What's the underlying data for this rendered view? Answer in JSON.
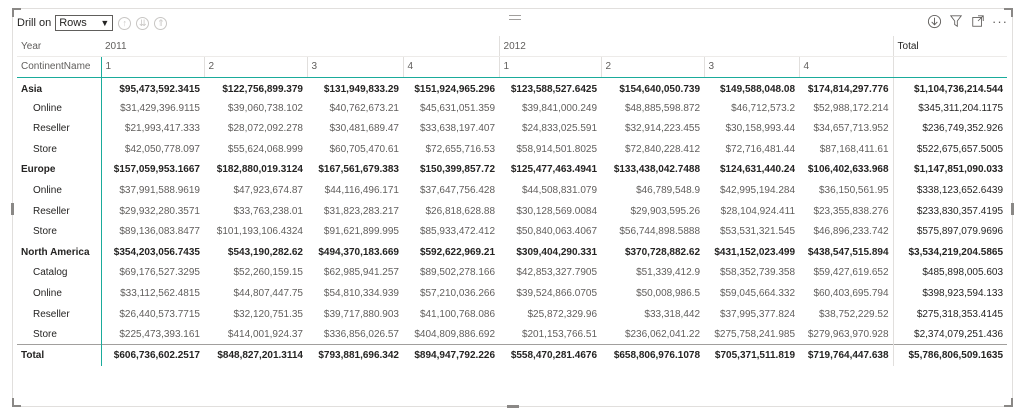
{
  "drill": {
    "label": "Drill on",
    "selected": "Rows"
  },
  "icons": {
    "drill_up": "up-arrow-circle-icon",
    "drill_down": "down-arrow-circle-icon",
    "expand_all": "double-up-arrow-circle-icon",
    "drill_mode": "down-arrow-circle-icon",
    "filter": "filter-icon",
    "focus": "focus-mode-icon",
    "more": "more-options-icon"
  },
  "header": {
    "row1_label": "Year",
    "row2_label": "ContinentName",
    "years": [
      "2011",
      "2012"
    ],
    "quarters": [
      "1",
      "2",
      "3",
      "4",
      "1",
      "2",
      "3",
      "4"
    ],
    "total_label": "Total"
  },
  "rows": [
    {
      "label": "Asia",
      "level": "region",
      "values": [
        "$95,473,592.3415",
        "$122,756,899.379",
        "$131,949,833.29",
        "$151,924,965.296",
        "$123,588,527.6425",
        "$154,640,050.739",
        "$149,588,048.08",
        "$174,814,297.776"
      ],
      "total": "$1,104,736,214.544"
    },
    {
      "label": "Online",
      "level": "child",
      "values": [
        "$31,429,396.9115",
        "$39,060,738.102",
        "$40,762,673.21",
        "$45,631,051.359",
        "$39,841,000.249",
        "$48,885,598.872",
        "$46,712,573.2",
        "$52,988,172.214"
      ],
      "total": "$345,311,204.1175"
    },
    {
      "label": "Reseller",
      "level": "child",
      "values": [
        "$21,993,417.333",
        "$28,072,092.278",
        "$30,481,689.47",
        "$33,638,197.407",
        "$24,833,025.591",
        "$32,914,223.455",
        "$30,158,993.44",
        "$34,657,713.952"
      ],
      "total": "$236,749,352.926"
    },
    {
      "label": "Store",
      "level": "child",
      "values": [
        "$42,050,778.097",
        "$55,624,068.999",
        "$60,705,470.61",
        "$72,655,716.53",
        "$58,914,501.8025",
        "$72,840,228.412",
        "$72,716,481.44",
        "$87,168,411.61"
      ],
      "total": "$522,675,657.5005"
    },
    {
      "label": "Europe",
      "level": "region",
      "values": [
        "$157,059,953.1667",
        "$182,880,019.3124",
        "$167,561,679.383",
        "$150,399,857.72",
        "$125,477,463.4941",
        "$133,438,042.7488",
        "$124,631,440.24",
        "$106,402,633.968"
      ],
      "total": "$1,147,851,090.033"
    },
    {
      "label": "Online",
      "level": "child",
      "values": [
        "$37,991,588.9619",
        "$47,923,674.87",
        "$44,116,496.171",
        "$37,647,756.428",
        "$44,508,831.079",
        "$46,789,548.9",
        "$42,995,194.284",
        "$36,150,561.95"
      ],
      "total": "$338,123,652.6439"
    },
    {
      "label": "Reseller",
      "level": "child",
      "values": [
        "$29,932,280.3571",
        "$33,763,238.01",
        "$31,823,283.217",
        "$26,818,628.88",
        "$30,128,569.0084",
        "$29,903,595.26",
        "$28,104,924.411",
        "$23,355,838.276"
      ],
      "total": "$233,830,357.4195"
    },
    {
      "label": "Store",
      "level": "child",
      "values": [
        "$89,136,083.8477",
        "$101,193,106.4324",
        "$91,621,899.995",
        "$85,933,472.412",
        "$50,840,063.4067",
        "$56,744,898.5888",
        "$53,531,321.545",
        "$46,896,233.742"
      ],
      "total": "$575,897,079.9696"
    },
    {
      "label": "North America",
      "level": "region",
      "values": [
        "$354,203,056.7435",
        "$543,190,282.62",
        "$494,370,183.669",
        "$592,622,969.21",
        "$309,404,290.331",
        "$370,728,882.62",
        "$431,152,023.499",
        "$438,547,515.894"
      ],
      "total": "$3,534,219,204.5865"
    },
    {
      "label": "Catalog",
      "level": "child",
      "values": [
        "$69,176,527.3295",
        "$52,260,159.15",
        "$62,985,941.257",
        "$89,502,278.166",
        "$42,853,327.7905",
        "$51,339,412.9",
        "$58,352,739.358",
        "$59,427,619.652"
      ],
      "total": "$485,898,005.603"
    },
    {
      "label": "Online",
      "level": "child",
      "values": [
        "$33,112,562.4815",
        "$44,807,447.75",
        "$54,810,334.939",
        "$57,210,036.266",
        "$39,524,866.0705",
        "$50,008,986.5",
        "$59,045,664.332",
        "$60,403,695.794"
      ],
      "total": "$398,923,594.133"
    },
    {
      "label": "Reseller",
      "level": "child",
      "values": [
        "$26,440,573.7715",
        "$32,120,751.35",
        "$39,717,880.903",
        "$41,100,768.086",
        "$25,872,329.96",
        "$33,318,442",
        "$37,995,377.824",
        "$38,752,229.52"
      ],
      "total": "$275,318,353.4145"
    },
    {
      "label": "Store",
      "level": "child",
      "values": [
        "$225,473,393.161",
        "$414,001,924.37",
        "$336,856,026.57",
        "$404,809,886.692",
        "$201,153,766.51",
        "$236,062,041.22",
        "$275,758,241.985",
        "$279,963,970.928"
      ],
      "total": "$2,374,079,251.436"
    },
    {
      "label": "Total",
      "level": "grand",
      "values": [
        "$606,736,602.2517",
        "$848,827,201.3114",
        "$793,881,696.342",
        "$894,947,792.226",
        "$558,470,281.4676",
        "$658,806,976.1078",
        "$705,371,511.819",
        "$719,764,447.638"
      ],
      "total": "$5,786,806,509.1635"
    }
  ]
}
